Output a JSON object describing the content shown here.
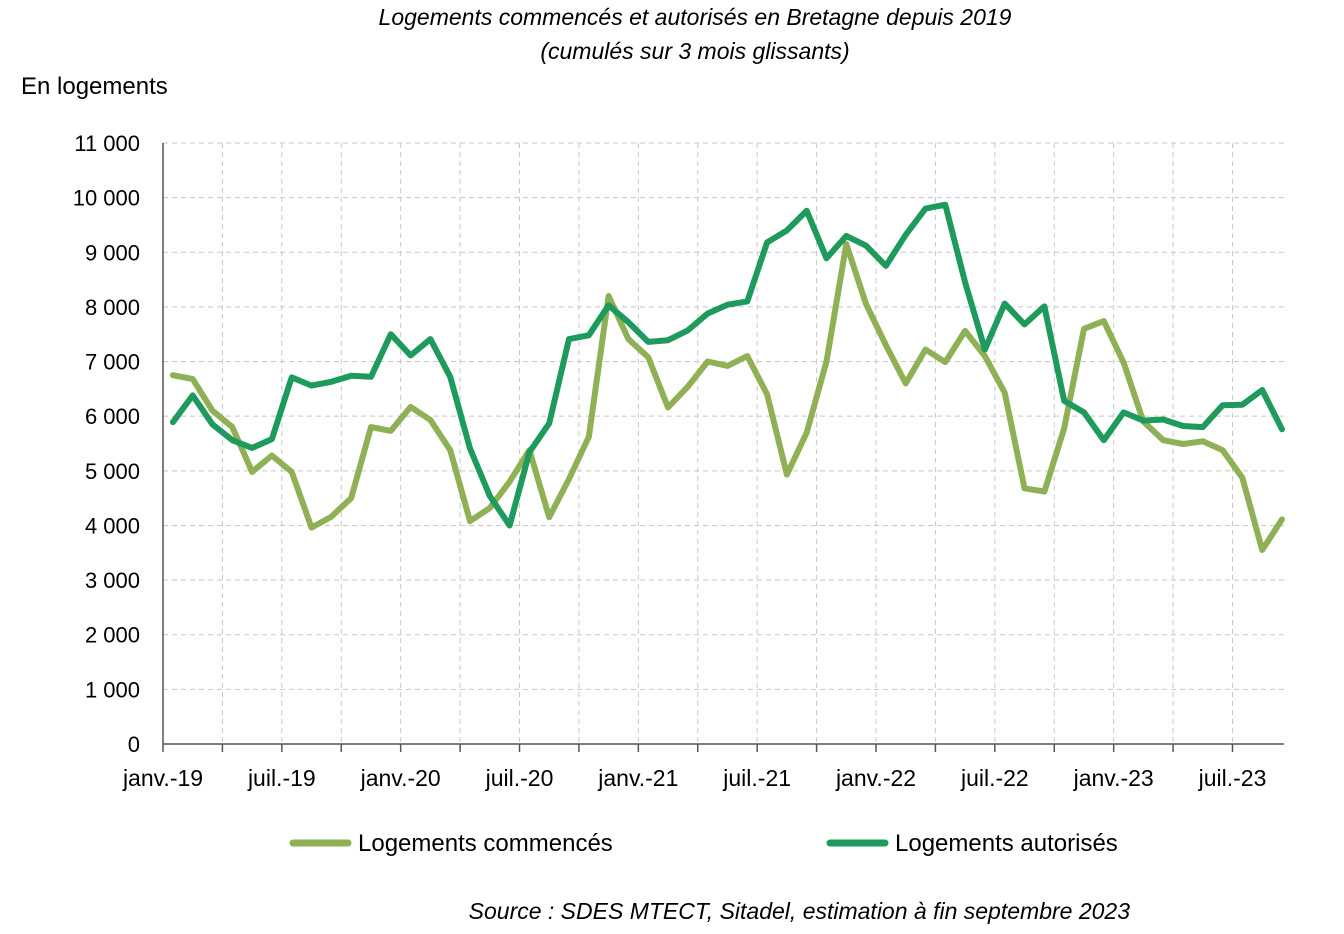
{
  "title_line1": "Logements commencés et autorisés en Bretagne depuis 2019",
  "title_line2": "(cumulés sur 3 mois glissants)",
  "unit_label": "En logements",
  "source": "Source : SDES MTECT, Sitadel, estimation à fin septembre 2023",
  "chart_data": {
    "type": "line",
    "title": "Logements commencés et autorisés en Bretagne depuis 2019",
    "subtitle": "(cumulés sur 3 mois glissants)",
    "ylabel": "En logements",
    "ylim": [
      0,
      11000
    ],
    "yticks": [
      0,
      1000,
      2000,
      3000,
      4000,
      5000,
      6000,
      7000,
      8000,
      9000,
      10000,
      11000
    ],
    "ytick_labels": [
      "0",
      "1 000",
      "2 000",
      "3 000",
      "4 000",
      "5 000",
      "6 000",
      "7 000",
      "8 000",
      "9 000",
      "10 000",
      "11 000"
    ],
    "xtick_labels": [
      "janv.-19",
      "juil.-19",
      "janv.-20",
      "juil.-20",
      "janv.-21",
      "juil.-21",
      "janv.-22",
      "juil.-22",
      "janv.-23",
      "juil.-23"
    ],
    "grid": true,
    "legend_position": "bottom",
    "months": [
      "2019-01",
      "2019-02",
      "2019-03",
      "2019-04",
      "2019-05",
      "2019-06",
      "2019-07",
      "2019-08",
      "2019-09",
      "2019-10",
      "2019-11",
      "2019-12",
      "2020-01",
      "2020-02",
      "2020-03",
      "2020-04",
      "2020-05",
      "2020-06",
      "2020-07",
      "2020-08",
      "2020-09",
      "2020-10",
      "2020-11",
      "2020-12",
      "2021-01",
      "2021-02",
      "2021-03",
      "2021-04",
      "2021-05",
      "2021-06",
      "2021-07",
      "2021-08",
      "2021-09",
      "2021-10",
      "2021-11",
      "2021-12",
      "2022-01",
      "2022-02",
      "2022-03",
      "2022-04",
      "2022-05",
      "2022-06",
      "2022-07",
      "2022-08",
      "2022-09",
      "2022-10",
      "2022-11",
      "2022-12",
      "2023-01",
      "2023-02",
      "2023-03",
      "2023-04",
      "2023-05",
      "2023-06",
      "2023-07",
      "2023-08",
      "2023-09"
    ],
    "series": [
      {
        "name": "Logements commencés",
        "color": "#8fb054",
        "values": [
          6750,
          6680,
          6100,
          5800,
          4980,
          5280,
          4980,
          3960,
          4160,
          4500,
          5800,
          5730,
          6170,
          5930,
          5380,
          4080,
          4320,
          4800,
          5380,
          4150,
          4850,
          5620,
          8200,
          7410,
          7080,
          6160,
          6540,
          7000,
          6920,
          7100,
          6400,
          4930,
          5700,
          7000,
          9150,
          8050,
          7300,
          6600,
          7220,
          6990,
          7560,
          7100,
          6430,
          4680,
          4620,
          5780,
          7600,
          7740,
          6980,
          5900,
          5560,
          5490,
          5540,
          5380,
          4870,
          3550,
          4110
        ]
      },
      {
        "name": "Logements autorisés",
        "color": "#1d9a5c",
        "values": [
          5890,
          6380,
          5850,
          5560,
          5420,
          5580,
          6710,
          6560,
          6630,
          6740,
          6720,
          7500,
          7110,
          7410,
          6720,
          5410,
          4540,
          4000,
          5340,
          5870,
          7410,
          7480,
          8030,
          7720,
          7360,
          7390,
          7570,
          7880,
          8040,
          8100,
          9180,
          9400,
          9760,
          8890,
          9300,
          9120,
          8750,
          9320,
          9800,
          9870,
          8450,
          7220,
          8060,
          7680,
          8010,
          6280,
          6070,
          5560,
          6070,
          5920,
          5940,
          5820,
          5800,
          6200,
          6210,
          6480,
          5760
        ]
      }
    ]
  }
}
